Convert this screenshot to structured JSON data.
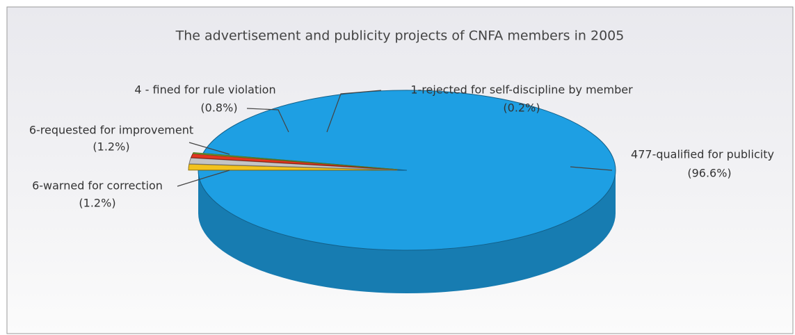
{
  "chart_data": {
    "type": "pie3d",
    "title": "The advertisement and publicity projects of CNFA members in 2005",
    "categories": [
      "477-qualified for publicity",
      "6-warned for correction",
      "6-requested for improvement",
      "4 - fined for rule violation",
      "1-rejected for self-discipline by member"
    ],
    "values": [
      96.6,
      1.2,
      1.2,
      0.8,
      0.2
    ],
    "value_labels": [
      "(96.6%)",
      "(1.2%)",
      "(1.2%)",
      "(0.8%)",
      "(0.2%)"
    ],
    "colors": [
      "#1e9fe3",
      "#f2c21e",
      "#c4c4c4",
      "#e2361f",
      "#8cc63f"
    ]
  }
}
